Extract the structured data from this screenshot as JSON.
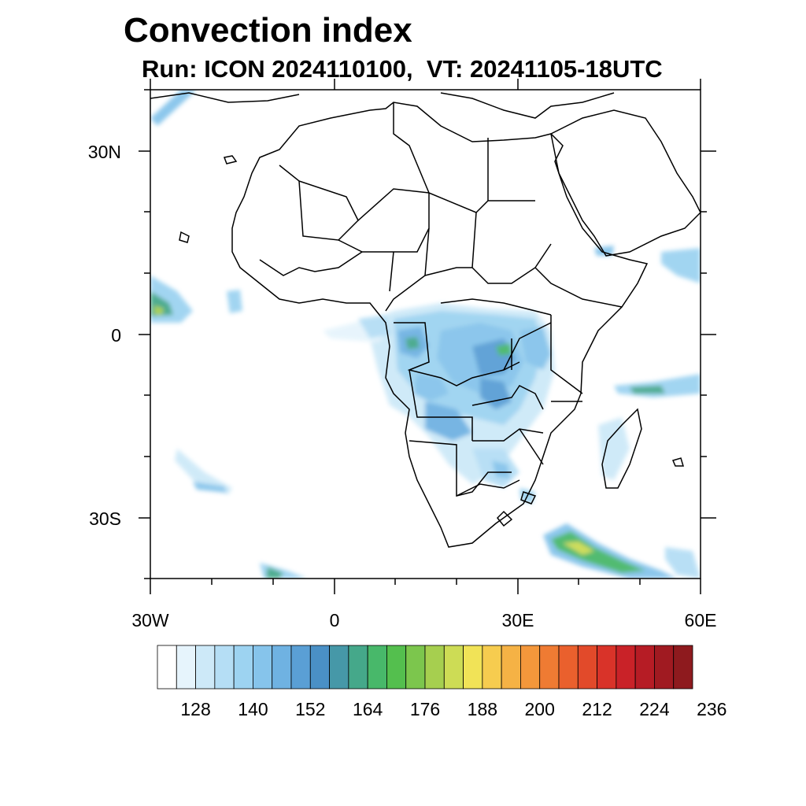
{
  "title": "Convection index",
  "subtitle": "Run: ICON 2024110100,  VT: 20241105-18UTC",
  "lat_labels": [
    "30N",
    "0",
    "30S"
  ],
  "lon_labels": [
    "30W",
    "0",
    "30E",
    "60E"
  ],
  "colorbar": {
    "labels": [
      "128",
      "140",
      "152",
      "164",
      "176",
      "188",
      "200",
      "212",
      "224",
      "236"
    ],
    "colors": [
      "#ffffff",
      "#e6f4fc",
      "#cde9f8",
      "#b5def5",
      "#9dd3f1",
      "#86c4eb",
      "#6fb2e2",
      "#5a9fd5",
      "#4a90c6",
      "#4698a8",
      "#45a88a",
      "#48b86a",
      "#54bf4e",
      "#7cc64d",
      "#a6cf4f",
      "#cddc55",
      "#f1e357",
      "#f6cc4f",
      "#f5b245",
      "#f3973b",
      "#ef7b33",
      "#ea602d",
      "#e24a2a",
      "#d93329",
      "#c92228",
      "#b61c25",
      "#a01a21",
      "#8e1a1e"
    ]
  },
  "map": {
    "region": "Africa",
    "lat_range": [
      -40,
      40
    ],
    "lon_range": [
      -30,
      60
    ]
  }
}
